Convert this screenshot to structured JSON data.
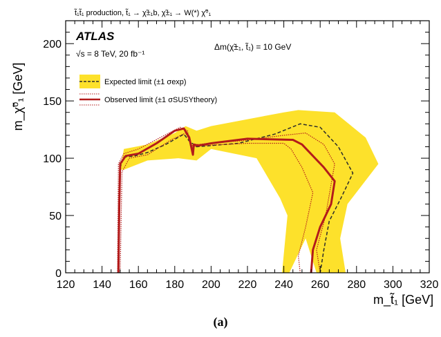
{
  "header_text": "t̃₁t̃₁ production, t̃₁ → χ̃±₁b,  χ̃±₁ → W(*) χ̃⁰₁",
  "experiment_label": "ATLAS",
  "energy_lumi": "√s = 8 TeV, 20 fb⁻¹",
  "delta_m_label": "Δm(χ̃±₁, t̃₁) = 10 GeV",
  "legend": {
    "expected": "Expected limit (±1 σexp)",
    "observed": "Observed limit (±1 σSUSYtheory)"
  },
  "caption": "(a)",
  "colors": {
    "band": "#fde12b",
    "observed": "#b31b1b",
    "expected": "#2b2b2b",
    "obs_dotted": "#b31b1b"
  },
  "chart_data": {
    "type": "line",
    "title": "",
    "xlabel": "m_t̃₁ [GeV]",
    "ylabel": "m_χ̃⁰₁ [GeV]",
    "xlim": [
      120,
      320
    ],
    "ylim": [
      0,
      220
    ],
    "xticks": [
      120,
      140,
      160,
      180,
      200,
      220,
      240,
      260,
      280,
      300,
      320
    ],
    "yticks": [
      0,
      50,
      100,
      150,
      200
    ],
    "xtick_labels": [
      "120",
      "140",
      "160",
      "180",
      "200",
      "220",
      "240",
      "260",
      "280",
      "300",
      "320"
    ],
    "ytick_labels": [
      "0",
      "50",
      "100",
      "150",
      "200"
    ],
    "series": [
      {
        "name": "Expected limit (±1 σexp)",
        "style": "dashed",
        "x": [
          149,
          150,
          152,
          158,
          165,
          175,
          185,
          188,
          192,
          215,
          235,
          249,
          260,
          270,
          278,
          272,
          265,
          262,
          260
        ],
        "y": [
          0,
          92,
          101,
          102,
          105,
          112,
          121,
          115,
          110,
          113,
          121,
          130,
          127,
          110,
          87,
          67,
          45,
          20,
          0
        ]
      },
      {
        "name": "Expected band",
        "style": "band",
        "x": [
          150,
          152,
          165,
          180,
          186,
          192,
          200,
          240,
          248,
          268,
          285,
          292,
          275,
          271,
          274,
          258,
          252,
          243,
          239,
          242,
          238,
          225,
          200,
          192,
          182,
          165,
          152
        ],
        "y": [
          90,
          108,
          112,
          122,
          128,
          124,
          128,
          140,
          142,
          140,
          118,
          95,
          60,
          30,
          0,
          0,
          30,
          0,
          0,
          50,
          65,
          100,
          108,
          98,
          100,
          98,
          90
        ]
      },
      {
        "name": "Observed limit (±1 σSUSYtheory)",
        "style": "solid",
        "x": [
          149,
          149.5,
          150,
          153,
          160,
          170,
          180,
          185,
          188,
          190,
          190.5,
          193,
          200,
          220,
          245,
          250,
          262,
          268,
          266,
          260,
          256,
          255
        ],
        "y": [
          0,
          60,
          95,
          102,
          104,
          113,
          124,
          126,
          118,
          103,
          112,
          111,
          113,
          117,
          116,
          112,
          92,
          80,
          60,
          40,
          20,
          0
        ]
      },
      {
        "name": "Observed +1σ theory",
        "style": "dotted",
        "x": [
          148.5,
          149,
          152,
          160,
          172,
          183,
          187,
          189,
          192,
          215,
          240,
          252,
          262,
          268,
          263,
          258,
          260
        ],
        "y": [
          0,
          95,
          104,
          108,
          118,
          127,
          124,
          108,
          112,
          115,
          120,
          122,
          112,
          95,
          50,
          20,
          0
        ]
      },
      {
        "name": "Observed −1σ theory",
        "style": "dotted",
        "x": [
          150,
          151,
          155,
          165,
          178,
          186,
          190,
          195,
          220,
          240,
          244,
          250,
          256,
          252,
          248,
          249
        ],
        "y": [
          0,
          88,
          100,
          103,
          116,
          122,
          110,
          111,
          113,
          113,
          108,
          92,
          70,
          40,
          15,
          0
        ]
      }
    ]
  }
}
